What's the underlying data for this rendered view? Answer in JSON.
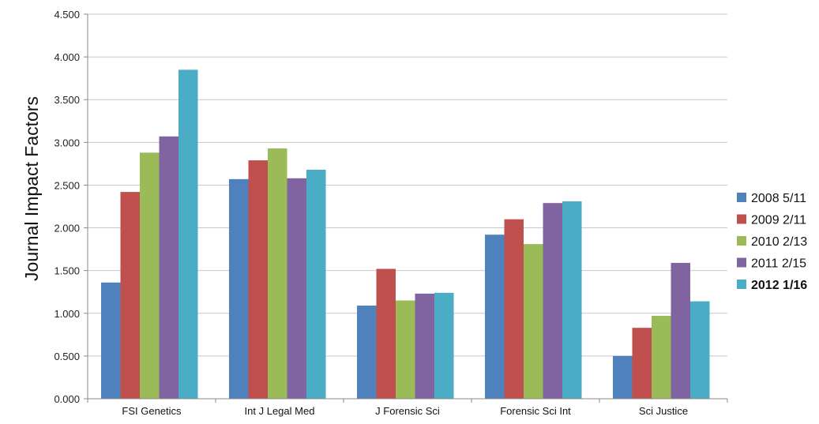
{
  "chart_data": {
    "type": "bar",
    "title": "",
    "xlabel": "",
    "ylabel": "Journal Impact Factors",
    "categories": [
      "FSI Genetics",
      "Int J Legal Med",
      "J Forensic Sci",
      "Forensic Sci Int",
      "Sci Justice"
    ],
    "series": [
      {
        "name": "2008 5/11",
        "color": "#4F81BD",
        "bold": false,
        "values": [
          1.36,
          2.57,
          1.09,
          1.92,
          0.5
        ]
      },
      {
        "name": "2009 2/11",
        "color": "#C0504D",
        "bold": false,
        "values": [
          2.42,
          2.79,
          1.52,
          2.1,
          0.83
        ]
      },
      {
        "name": "2010 2/13",
        "color": "#9BBB59",
        "bold": false,
        "values": [
          2.88,
          2.93,
          1.15,
          1.81,
          0.97
        ]
      },
      {
        "name": "2011 2/15",
        "color": "#8064A2",
        "bold": false,
        "values": [
          3.07,
          2.58,
          1.23,
          2.29,
          1.59
        ]
      },
      {
        "name": "2012 1/16",
        "color": "#4BACC6",
        "bold": true,
        "values": [
          3.85,
          2.68,
          1.24,
          2.31,
          1.14
        ]
      }
    ],
    "ylim": [
      0,
      4.5
    ],
    "yticks": [
      "0.000",
      "0.500",
      "1.000",
      "1.500",
      "2.000",
      "2.500",
      "3.000",
      "3.500",
      "4.000",
      "4.500"
    ],
    "grid": true,
    "legend": "right"
  }
}
